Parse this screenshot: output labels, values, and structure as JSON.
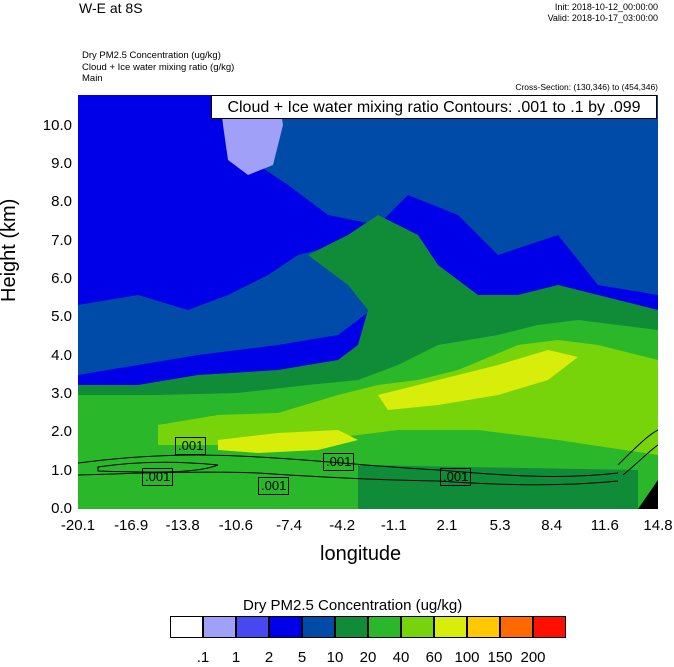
{
  "header": {
    "title": "W-E at 8S",
    "init": "Init: 2018-10-12_00:00:00",
    "valid": "Valid: 2018-10-17_03:00:00",
    "field_lines": [
      "Dry PM2.5 Concentration   (ug/kg)",
      "Cloud + Ice water mixing ratio   (g/kg)",
      "Main"
    ],
    "cross_section": "Cross-Section: (130,346) to (454,346)"
  },
  "contour_note": "Cloud + Ice water mixing ratio Contours: .001 to .1 by .099",
  "chart_data": {
    "type": "heatmap",
    "xlabel": "longitude",
    "ylabel": "Height (km)",
    "x_ticks": [
      "-20.1",
      "-16.9",
      "-13.8",
      "-10.6",
      "-7.4",
      "-4.2",
      "-1.1",
      "2.1",
      "5.3",
      "8.4",
      "11.6",
      "14.8"
    ],
    "y_ticks": [
      "0.0",
      "1.0",
      "2.0",
      "3.0",
      "4.0",
      "5.0",
      "6.0",
      "7.0",
      "8.0",
      "9.0",
      "10.0"
    ],
    "xlim": [
      -20.1,
      14.8
    ],
    "ylim": [
      0,
      10.8
    ],
    "contour_labels": [
      ".001",
      ".001",
      ".001",
      ".001",
      ".001"
    ],
    "colorbar": {
      "title": "Dry PM2.5 Concentration  (ug/kg)",
      "levels": [
        ".1",
        "1",
        "2",
        "5",
        "10",
        "20",
        "40",
        "60",
        "100",
        "150",
        "200"
      ],
      "colors": [
        "#ffffff",
        "#a0a0f8",
        "#4848f0",
        "#0000e8",
        "#004aa8",
        "#108c38",
        "#2ab82a",
        "#78d40a",
        "#d8ee0a",
        "#ffc800",
        "#ff6a00",
        "#ff0f00"
      ]
    }
  }
}
